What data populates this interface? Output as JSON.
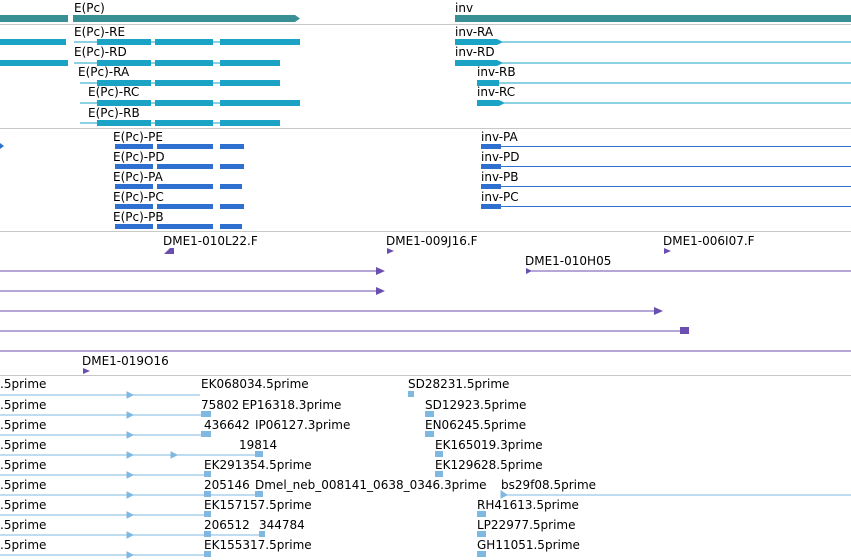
{
  "genes": {
    "top_labels": [
      "E(Pc)",
      "inv"
    ],
    "transcripts_left": [
      "E(Pc)-RE",
      "E(Pc)-RD",
      "E(Pc)-RA",
      "E(Pc)-RC",
      "E(Pc)-RB"
    ],
    "transcripts_right": [
      "inv-RA",
      "inv-RD",
      "inv-RB",
      "inv-RC"
    ],
    "proteins_left": [
      "E(Pc)-PE",
      "E(Pc)-PD",
      "E(Pc)-PA",
      "E(Pc)-PC",
      "E(Pc)-PB"
    ],
    "proteins_right": [
      "inv-PA",
      "inv-PD",
      "inv-PB",
      "inv-PC"
    ]
  },
  "clones": {
    "labels": [
      "DME1-010L22.F",
      "DME1-009J16.F",
      "DME1-006I07.F",
      "DME1-010H05",
      "DME1-019O16"
    ]
  },
  "ests": {
    "left": [
      ".5prime",
      ".5prime",
      ".5prime",
      ".5prime",
      ".5prime",
      ".5prime",
      ".5prime",
      ".5prime",
      ".5prime"
    ],
    "mid": [
      "EK068034.5prime",
      "75802",
      "EP16318.3prime",
      "436642",
      "IP06127.3prime",
      "19814",
      "EK291354.5prime",
      "205146",
      "Dmel_neb_008141_0638_0346.3prime",
      "EK157157.5prime",
      "206512",
      "344784",
      "EK155317.5prime"
    ],
    "right": [
      "SD28231.5prime",
      "SD12923.5prime",
      "EN06245.5prime",
      "EK165019.3prime",
      "EK129628.5prime",
      "bs29f08.5prime",
      "RH41613.5prime",
      "LP22977.5prime",
      "GH11051.5prime"
    ]
  },
  "colors": {
    "gene": "#3a8f95",
    "transcript": "#1aa3c4",
    "protein": "#2f6fd0",
    "clone": "#6a4fb0",
    "est": "#7fb8e0",
    "divider": "#c8c8c8"
  }
}
